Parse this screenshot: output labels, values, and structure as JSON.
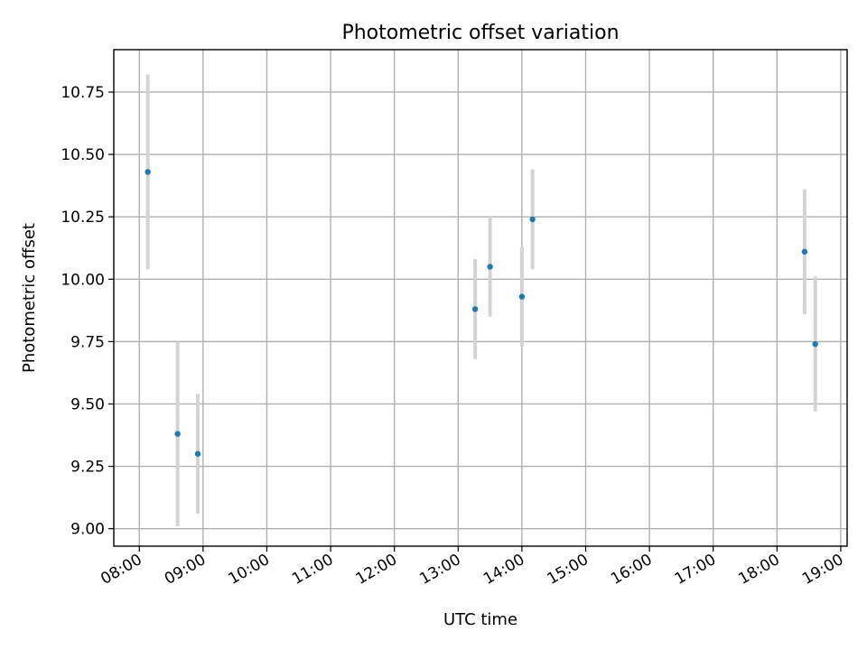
{
  "chart_data": {
    "type": "scatter",
    "title": "Photometric offset variation",
    "xlabel": "UTC time",
    "ylabel": "Photometric offset",
    "x_ticks": [
      "08:00",
      "09:00",
      "10:00",
      "11:00",
      "12:00",
      "13:00",
      "14:00",
      "15:00",
      "16:00",
      "17:00",
      "18:00",
      "19:00"
    ],
    "y_ticks": [
      "9.00",
      "9.25",
      "9.50",
      "9.75",
      "10.00",
      "10.25",
      "10.50",
      "10.75"
    ],
    "xlim": [
      "07:36",
      "19:06"
    ],
    "ylim": [
      8.93,
      10.92
    ],
    "grid": true,
    "colors": {
      "point": "#1f77b4",
      "errorbar": "#d3d3d3"
    },
    "series": [
      {
        "points": [
          {
            "x": "08:08",
            "y": 10.43,
            "yerr": 0.39
          },
          {
            "x": "08:36",
            "y": 9.38,
            "yerr": 0.37
          },
          {
            "x": "08:55",
            "y": 9.3,
            "yerr": 0.24
          },
          {
            "x": "13:16",
            "y": 9.88,
            "yerr": 0.2
          },
          {
            "x": "13:30",
            "y": 10.05,
            "yerr": 0.2
          },
          {
            "x": "14:00",
            "y": 9.93,
            "yerr": 0.2
          },
          {
            "x": "14:10",
            "y": 10.24,
            "yerr": 0.2
          },
          {
            "x": "18:26",
            "y": 10.11,
            "yerr": 0.25
          },
          {
            "x": "18:36",
            "y": 9.74,
            "yerr": 0.27
          }
        ]
      }
    ]
  }
}
